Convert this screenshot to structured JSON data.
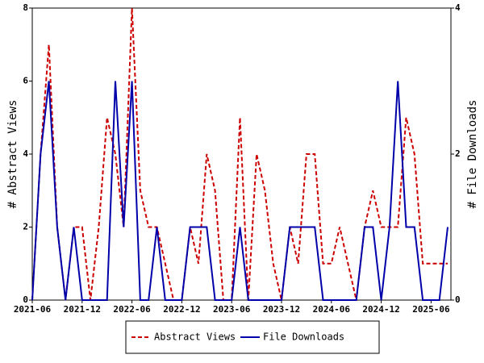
{
  "chart_data": {
    "type": "line",
    "categories": [
      "2021-06",
      null,
      null,
      null,
      null,
      null,
      "2021-12",
      null,
      null,
      null,
      null,
      null,
      "2022-06",
      null,
      null,
      null,
      null,
      null,
      "2022-12",
      null,
      null,
      null,
      null,
      null,
      "2023-06",
      null,
      null,
      null,
      null,
      null,
      "2023-12",
      null,
      null,
      null,
      null,
      null,
      "2024-06",
      null,
      null,
      null,
      null,
      null,
      "2024-12",
      null,
      null,
      null,
      null,
      null,
      "2025-06",
      null,
      null
    ],
    "ylabel": "# Abstract Views",
    "y2label": "# File Downloads",
    "ylim": [
      0,
      8
    ],
    "yticks": [
      0,
      2,
      4,
      6,
      8
    ],
    "y2lim": [
      0,
      4
    ],
    "y2ticks": [
      0,
      2,
      4
    ],
    "legend": "bottom",
    "series": [
      {
        "name": "Abstract Views",
        "color": "#cc0000",
        "dash": true,
        "values": [
          0,
          4,
          7,
          2,
          0,
          2,
          2,
          0,
          2,
          5,
          4,
          2,
          8,
          3,
          2,
          2,
          1,
          0,
          0,
          2,
          1,
          4,
          3,
          0,
          0,
          5,
          0,
          4,
          3,
          1,
          0,
          2,
          1,
          4,
          4,
          1,
          1,
          2,
          1,
          0,
          2,
          3,
          2,
          2,
          2,
          5,
          4,
          1,
          1,
          1,
          1
        ]
      },
      {
        "name": "File Downloads",
        "color": "#0000aa",
        "axis": "y2",
        "values": [
          0,
          2,
          3,
          1,
          0,
          1,
          0,
          0,
          0,
          0,
          3,
          1,
          3,
          0,
          0,
          1,
          0,
          0,
          0,
          1,
          1,
          1,
          0,
          0,
          0,
          1,
          0,
          0,
          0,
          0,
          0,
          1,
          1,
          1,
          1,
          0,
          0,
          0,
          0,
          0,
          1,
          1,
          0,
          1,
          3,
          1,
          1,
          0,
          0,
          0,
          1
        ]
      }
    ]
  }
}
